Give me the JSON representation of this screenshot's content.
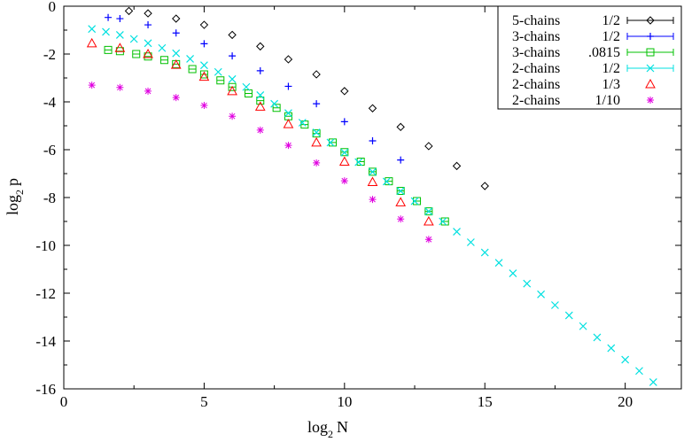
{
  "chart_data": {
    "type": "scatter",
    "xlabel": {
      "prefix": "log",
      "sub": "2",
      "suffix": "N"
    },
    "ylabel": {
      "prefix": "log",
      "sub": "2",
      "suffix": "p"
    },
    "xlim": [
      0,
      22
    ],
    "ylim": [
      -16,
      0
    ],
    "x_ticks": [
      0,
      5,
      10,
      15,
      20
    ],
    "x_tick_labels": [
      "0",
      "5",
      "10",
      "15",
      "20"
    ],
    "y_ticks": [
      0,
      -2,
      -4,
      -6,
      -8,
      -10,
      -12,
      -14,
      -16
    ],
    "y_tick_labels": [
      "0",
      "-2",
      "-4",
      "-6",
      "-8",
      "-10",
      "-12",
      "-14",
      "-16"
    ],
    "grid": false,
    "legend_position": "top-right",
    "series": [
      {
        "name": "5-chains 1/2",
        "legend_left": "5-chains",
        "legend_right": "1/2",
        "marker": "diamond",
        "color": "#000000",
        "x": [
          2.32,
          3,
          4,
          5,
          6,
          7,
          8,
          9,
          10,
          11,
          12,
          13,
          14,
          15
        ],
        "y": [
          -0.2,
          -0.3,
          -0.52,
          -0.78,
          -1.2,
          -1.68,
          -2.22,
          -2.85,
          -3.55,
          -4.27,
          -5.05,
          -5.85,
          -6.68,
          -7.52
        ]
      },
      {
        "name": "3-chains 1/2",
        "legend_left": "3-chains",
        "legend_right": "1/2",
        "marker": "plus",
        "color": "#0000ff",
        "x": [
          1.58,
          2,
          3,
          4,
          5,
          6,
          7,
          8,
          9,
          10,
          11,
          12
        ],
        "y": [
          -0.47,
          -0.52,
          -0.78,
          -1.12,
          -1.57,
          -2.08,
          -2.7,
          -3.35,
          -4.08,
          -4.83,
          -5.63,
          -6.43
        ]
      },
      {
        "name": "3-chains .0815",
        "legend_left": "3-chains",
        "legend_right": ".0815",
        "marker": "square",
        "color": "#00c000",
        "x": [
          1.58,
          2,
          2.58,
          3,
          3.58,
          4,
          4.58,
          5,
          5.58,
          6,
          6.58,
          7,
          7.58,
          8,
          8.58,
          9,
          9.58,
          10,
          10.58,
          11,
          11.58,
          12,
          12.58,
          13,
          13.58
        ],
        "y": [
          -1.83,
          -1.88,
          -2.0,
          -2.1,
          -2.25,
          -2.42,
          -2.63,
          -2.85,
          -3.1,
          -3.38,
          -3.65,
          -3.95,
          -4.25,
          -4.6,
          -4.95,
          -5.32,
          -5.7,
          -6.1,
          -6.5,
          -6.92,
          -7.32,
          -7.72,
          -8.15,
          -8.58,
          -9.0
        ]
      },
      {
        "name": "2-chains 1/2",
        "legend_left": "2-chains",
        "legend_right": "1/2",
        "marker": "x",
        "color": "#00e0e0",
        "x": [
          1,
          1.5,
          2,
          2.5,
          3,
          3.5,
          4,
          4.5,
          5,
          5.5,
          6,
          6.5,
          7,
          7.5,
          8,
          8.5,
          9,
          9.5,
          10,
          10.5,
          11,
          11.5,
          12,
          12.5,
          13,
          13.5,
          14,
          14.5,
          15,
          15.5,
          16,
          16.5,
          17,
          17.5,
          18,
          18.5,
          19,
          19.5,
          20,
          20.5,
          21
        ],
        "y": [
          -0.95,
          -1.07,
          -1.2,
          -1.37,
          -1.55,
          -1.75,
          -1.97,
          -2.2,
          -2.47,
          -2.75,
          -3.05,
          -3.38,
          -3.72,
          -4.08,
          -4.47,
          -4.87,
          -5.28,
          -5.7,
          -6.12,
          -6.52,
          -6.93,
          -7.33,
          -7.73,
          -8.15,
          -8.58,
          -9.0,
          -9.43,
          -9.87,
          -10.3,
          -10.73,
          -11.17,
          -11.6,
          -12.05,
          -12.5,
          -12.93,
          -13.38,
          -13.85,
          -14.3,
          -14.78,
          -15.25,
          -15.72
        ]
      },
      {
        "name": "2-chains 1/3",
        "legend_left": "2-chains",
        "legend_right": "1/3",
        "marker": "triangle",
        "color": "#ff0000",
        "x": [
          1,
          2,
          3,
          4,
          5,
          6,
          7,
          8,
          9,
          10,
          11,
          12,
          13
        ],
        "y": [
          -1.55,
          -1.75,
          -2.0,
          -2.45,
          -2.95,
          -3.55,
          -4.2,
          -4.93,
          -5.7,
          -6.5,
          -7.35,
          -8.2,
          -9.0
        ]
      },
      {
        "name": "2-chains 1/10",
        "legend_left": "2-chains",
        "legend_right": "1/10",
        "marker": "star",
        "color": "#e000e0",
        "x": [
          1,
          2,
          3,
          4,
          5,
          6,
          7,
          8,
          9,
          10,
          11,
          12,
          13
        ],
        "y": [
          -3.3,
          -3.4,
          -3.55,
          -3.82,
          -4.15,
          -4.6,
          -5.18,
          -5.82,
          -6.55,
          -7.3,
          -8.08,
          -8.9,
          -9.75
        ]
      }
    ]
  }
}
